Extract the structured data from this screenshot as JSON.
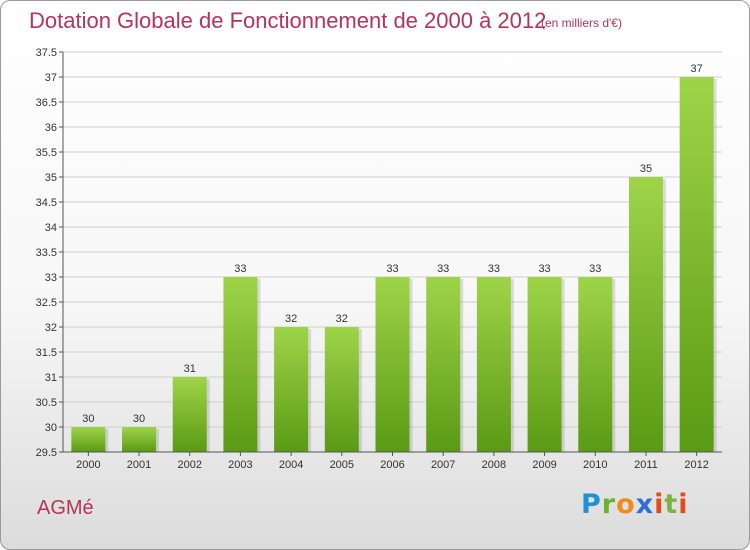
{
  "header": {
    "title": "Dotation Globale de Fonctionnement de 2000 à 2012",
    "subtitle": "(en milliers d'€)"
  },
  "footer": {
    "commune": "AGMé",
    "brand": [
      "P",
      "r",
      "o",
      "x",
      "i",
      "t",
      "i"
    ]
  },
  "colors": {
    "title": "#b4345a",
    "bar_light": "#9fd449",
    "bar_dark": "#5a9a14",
    "grid": "#cfcfcf"
  },
  "chart_data": {
    "type": "bar",
    "title": "Dotation Globale de Fonctionnement de 2000 à 2012",
    "subtitle": "(en milliers d'€)",
    "categories": [
      "2000",
      "2001",
      "2002",
      "2003",
      "2004",
      "2005",
      "2006",
      "2007",
      "2008",
      "2009",
      "2010",
      "2011",
      "2012"
    ],
    "values": [
      30,
      30,
      31,
      33,
      32,
      32,
      33,
      33,
      33,
      33,
      33,
      35,
      37
    ],
    "ylim": [
      29.5,
      37.5
    ],
    "yticks": [
      "29.5",
      "30",
      "30.5",
      "31",
      "31.5",
      "32",
      "32.5",
      "33",
      "33.5",
      "34",
      "34.5",
      "35",
      "35.5",
      "36",
      "36.5",
      "37",
      "37.5"
    ],
    "xlabel": "",
    "ylabel": "",
    "grid": true,
    "legend": "none"
  }
}
